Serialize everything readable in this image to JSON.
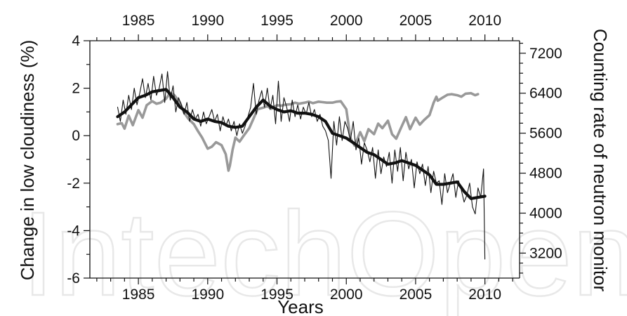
{
  "chart_data": {
    "type": "line",
    "title": "",
    "xlabel": "Years",
    "ylabel_left": "Change in low cloudiness (%)",
    "ylabel_right": "Counting rate of neutron monitor",
    "xlim": [
      1981.5,
      2012.5
    ],
    "ylim_left": [
      -6,
      4
    ],
    "ylim_right": [
      2700,
      7450
    ],
    "x_ticks": [
      1985,
      1990,
      1995,
      2000,
      2005,
      2010
    ],
    "y_left_ticks": [
      -6,
      -4,
      -2,
      0,
      2,
      4
    ],
    "y_right_ticks": [
      3200,
      4000,
      4800,
      5600,
      6400,
      7200
    ],
    "grid": false,
    "watermark": "IntechOpen",
    "colors": {
      "cloudiness_monthly": "#111111",
      "cloudiness_smoothed": "#111111",
      "neutron_monitor": "#999999"
    },
    "series": [
      {
        "name": "",
        "axis": "left",
        "style": "thin",
        "x": [
          1983.5,
          1983.7,
          1983.9,
          1984.1,
          1984.3,
          1984.5,
          1984.7,
          1984.9,
          1985.1,
          1985.3,
          1985.5,
          1985.7,
          1985.9,
          1986.1,
          1986.3,
          1986.5,
          1986.7,
          1986.9,
          1987.1,
          1987.3,
          1987.5,
          1987.7,
          1987.9,
          1988.1,
          1988.3,
          1988.5,
          1988.7,
          1988.9,
          1989.1,
          1989.3,
          1989.5,
          1989.7,
          1989.9,
          1990.1,
          1990.3,
          1990.5,
          1990.7,
          1990.9,
          1991.1,
          1991.3,
          1991.5,
          1991.7,
          1991.9,
          1992.1,
          1992.3,
          1992.5,
          1992.7,
          1992.9,
          1993.1,
          1993.3,
          1993.5,
          1993.7,
          1993.9,
          1994.1,
          1994.3,
          1994.5,
          1994.7,
          1994.9,
          1995.1,
          1995.3,
          1995.5,
          1995.7,
          1995.9,
          1996.1,
          1996.3,
          1996.5,
          1996.7,
          1996.9,
          1997.1,
          1997.3,
          1997.5,
          1997.7,
          1997.9,
          1998.1,
          1998.3,
          1998.5,
          1998.7,
          1998.9,
          1999.1,
          1999.3,
          1999.5,
          1999.7,
          1999.9,
          2000.1,
          2000.3,
          2000.5,
          2000.7,
          2000.9,
          2001.1,
          2001.3,
          2001.5,
          2001.7,
          2001.9,
          2002.1,
          2002.3,
          2002.5,
          2002.7,
          2002.9,
          2003.1,
          2003.3,
          2003.5,
          2003.7,
          2003.9,
          2004.1,
          2004.3,
          2004.5,
          2004.7,
          2004.9,
          2005.1,
          2005.3,
          2005.5,
          2005.7,
          2005.9,
          2006.1,
          2006.3,
          2006.5,
          2006.7,
          2006.9,
          2007.1,
          2007.3,
          2007.5,
          2007.7,
          2007.9,
          2008.1,
          2008.3,
          2008.5,
          2008.7,
          2008.9,
          2009.1,
          2009.3,
          2009.5,
          2009.7,
          2009.9,
          2010.0
        ],
        "values": [
          1.2,
          0.6,
          1.5,
          0.9,
          1.7,
          1.1,
          2.0,
          1.3,
          1.8,
          2.4,
          1.6,
          2.2,
          1.5,
          2.5,
          1.7,
          2.0,
          2.6,
          1.4,
          2.7,
          1.5,
          2.1,
          1.0,
          1.6,
          1.3,
          0.9,
          1.4,
          0.6,
          1.1,
          0.7,
          0.9,
          0.4,
          1.0,
          0.5,
          0.8,
          1.1,
          0.6,
          0.9,
          0.2,
          0.8,
          0.4,
          0.7,
          0.2,
          0.6,
          0.0,
          0.5,
          0.1,
          0.4,
          0.8,
          1.2,
          2.2,
          0.9,
          1.5,
          1.9,
          1.2,
          2.0,
          1.1,
          1.7,
          0.5,
          2.3,
          0.6,
          1.6,
          1.2,
          0.6,
          1.5,
          0.8,
          1.3,
          0.7,
          1.2,
          0.9,
          1.4,
          0.8,
          1.1,
          0.6,
          0.9,
          0.4,
          0.2,
          -0.2,
          -1.8,
          0.6,
          -0.4,
          0.8,
          -0.2,
          0.6,
          0.3,
          -0.2,
          0.6,
          -0.6,
          -0.1,
          -1.2,
          -0.3,
          -0.6,
          -1.1,
          -0.5,
          -1.8,
          -0.6,
          -1.6,
          -0.9,
          -1.3,
          -0.7,
          -2.0,
          -0.6,
          -1.5,
          -0.5,
          -1.9,
          -0.7,
          -1.4,
          -1.0,
          -2.2,
          -1.1,
          -1.6,
          -1.2,
          -2.1,
          -1.3,
          -2.4,
          -1.5,
          -2.0,
          -1.9,
          -2.9,
          -1.6,
          -2.4,
          -2.0,
          -1.6,
          -2.6,
          -1.9,
          -2.3,
          -2.8,
          -2.5,
          -2.0,
          -3.0,
          -3.3,
          -2.2,
          -2.6,
          -1.4,
          -5.2
        ]
      },
      {
        "name": "",
        "axis": "left",
        "style": "thick",
        "x": [
          1983.5,
          1984.0,
          1984.5,
          1985.0,
          1985.5,
          1986.0,
          1986.5,
          1987.0,
          1987.5,
          1988.0,
          1988.5,
          1989.0,
          1989.5,
          1990.0,
          1990.5,
          1991.0,
          1991.5,
          1992.0,
          1992.5,
          1993.0,
          1993.5,
          1994.0,
          1994.5,
          1995.0,
          1995.5,
          1996.0,
          1996.5,
          1997.0,
          1997.5,
          1998.0,
          1998.5,
          1999.0,
          1999.5,
          2000.0,
          2000.5,
          2001.0,
          2001.5,
          2002.0,
          2002.5,
          2003.0,
          2003.5,
          2004.0,
          2004.5,
          2005.0,
          2005.5,
          2006.0,
          2006.5,
          2007.0,
          2007.5,
          2008.0,
          2008.5,
          2009.0,
          2009.5,
          2010.0
        ],
        "values": [
          0.8,
          1.0,
          1.3,
          1.6,
          1.7,
          1.85,
          1.9,
          1.95,
          1.6,
          1.2,
          1.0,
          0.7,
          0.6,
          0.7,
          0.6,
          0.55,
          0.4,
          0.35,
          0.4,
          0.8,
          1.2,
          1.5,
          1.25,
          1.1,
          1.0,
          1.05,
          0.95,
          0.95,
          0.9,
          0.8,
          0.6,
          0.1,
          0.0,
          -0.1,
          -0.3,
          -0.5,
          -0.7,
          -0.8,
          -1.0,
          -1.2,
          -1.15,
          -1.05,
          -1.15,
          -1.25,
          -1.45,
          -1.65,
          -2.05,
          -2.05,
          -2.0,
          -1.95,
          -2.35,
          -2.65,
          -2.6,
          -2.55
        ]
      },
      {
        "name": "",
        "axis": "right",
        "style": "medium",
        "x": [
          1983.5,
          1983.8,
          1984.0,
          1984.3,
          1984.6,
          1985.0,
          1985.3,
          1985.6,
          1986.0,
          1986.3,
          1986.6,
          1987.0,
          1987.3,
          1987.6,
          1988.0,
          1988.3,
          1988.6,
          1989.0,
          1989.3,
          1989.6,
          1990.0,
          1990.3,
          1990.6,
          1991.0,
          1991.3,
          1991.5,
          1991.6,
          1991.8,
          1992.0,
          1992.3,
          1992.6,
          1993.0,
          1993.3,
          1993.6,
          1994.0,
          1994.3,
          1994.6,
          1995.0,
          1995.3,
          1995.6,
          1996.0,
          1996.3,
          1996.6,
          1997.0,
          1997.3,
          1997.6,
          1998.0,
          1998.3,
          1998.6,
          1999.0,
          1999.3,
          1999.6,
          2000.0,
          2000.3,
          2000.6,
          2001.0,
          2001.3,
          2001.6,
          2002.0,
          2002.3,
          2002.6,
          2003.0,
          2003.3,
          2003.6,
          2004.0,
          2004.3,
          2004.6,
          2005.0,
          2005.3,
          2005.6,
          2006.0,
          2006.3,
          2006.5,
          2006.6,
          2007.0,
          2007.3,
          2007.6,
          2008.0,
          2008.3,
          2008.6,
          2009.0,
          2009.3,
          2009.5
        ],
        "values": [
          5780,
          5800,
          5690,
          5950,
          5760,
          6060,
          5910,
          6160,
          6240,
          6190,
          6210,
          6290,
          6410,
          6360,
          6210,
          6010,
          5890,
          5780,
          5640,
          5510,
          5290,
          5330,
          5420,
          5360,
          5180,
          4850,
          4950,
          5270,
          5510,
          5430,
          5550,
          5700,
          5890,
          6080,
          6110,
          6140,
          6090,
          6160,
          6150,
          6170,
          6180,
          6210,
          6190,
          6210,
          6230,
          6200,
          6230,
          6220,
          6210,
          6210,
          6230,
          6240,
          6080,
          5500,
          5350,
          5620,
          5440,
          5680,
          5580,
          5790,
          5700,
          5850,
          5580,
          5490,
          5740,
          5920,
          5680,
          5910,
          5770,
          5860,
          5960,
          6210,
          6330,
          6250,
          6320,
          6370,
          6380,
          6360,
          6330,
          6390,
          6400,
          6360,
          6380
        ]
      }
    ]
  }
}
